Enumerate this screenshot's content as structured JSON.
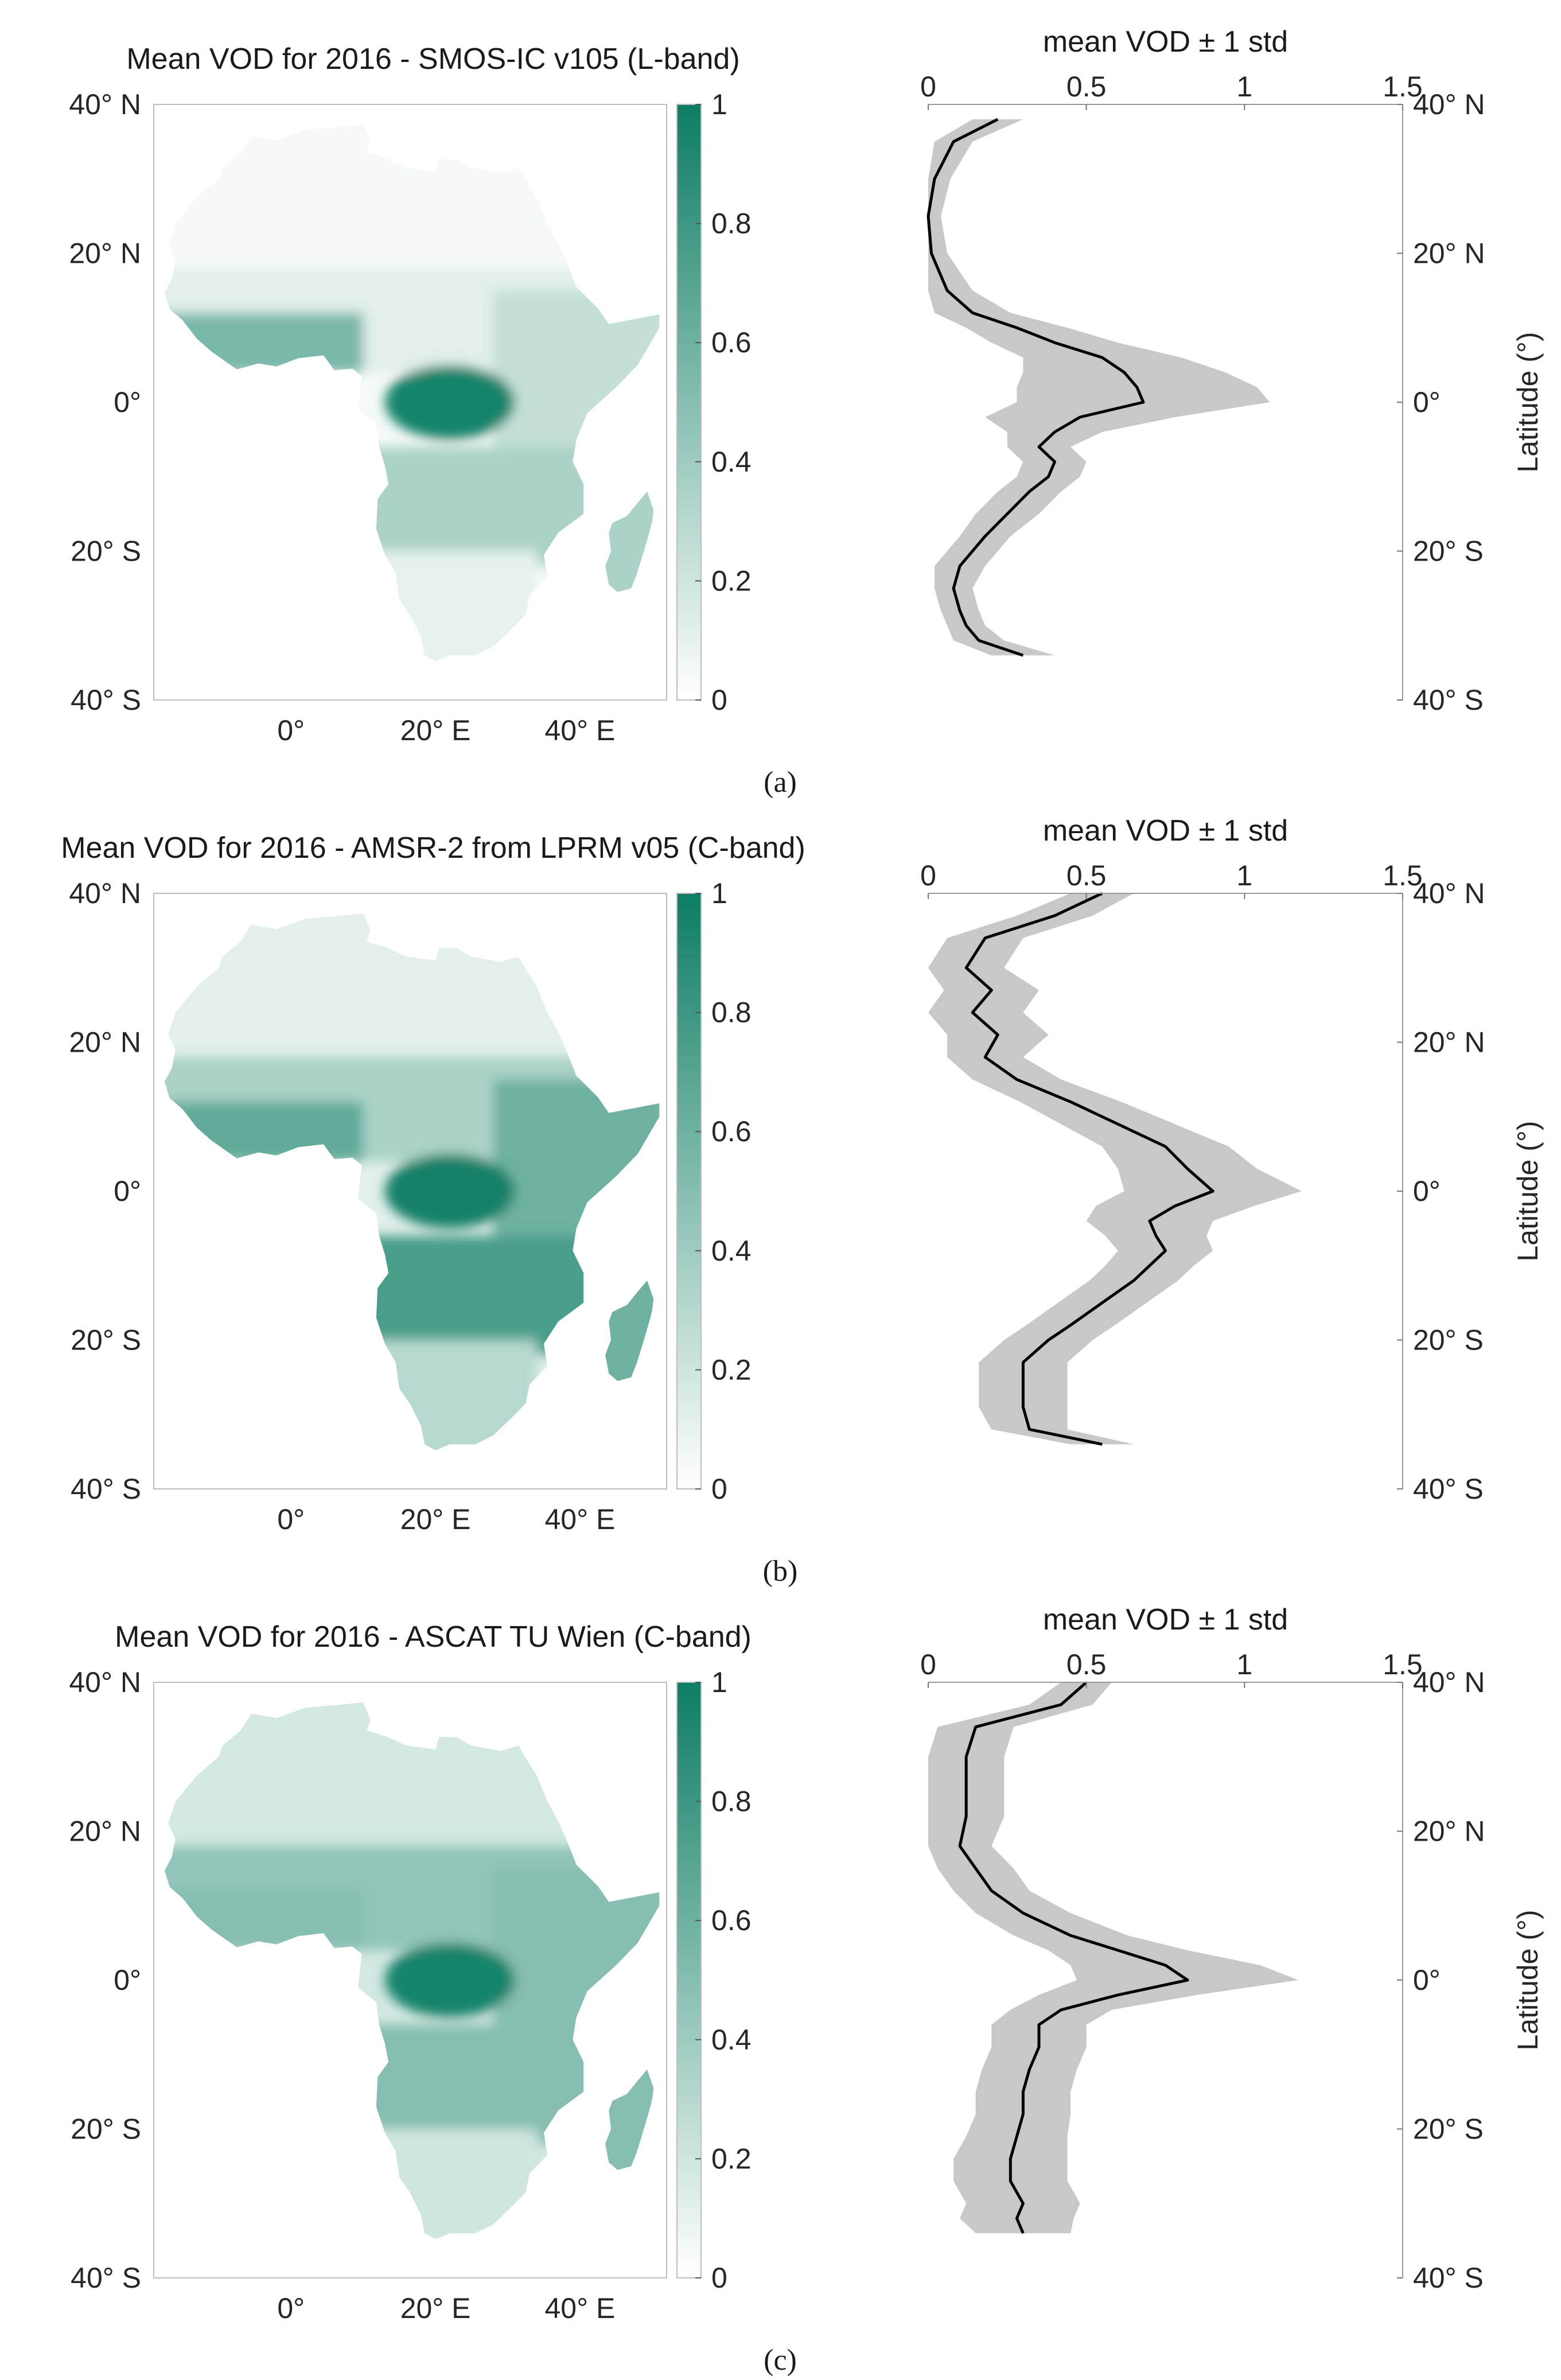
{
  "panels": [
    {
      "id": "a",
      "caption": "(a)",
      "map_title": "Mean VOD for 2016 - SMOS-IC v105 (L-band)",
      "profile_title": "mean VOD ± 1 std",
      "colorbar_ticks": [
        "0",
        "0.2",
        "0.4",
        "0.6",
        "0.8",
        "1"
      ],
      "lat_ticks": [
        "40° N",
        "20° N",
        "0°",
        "20° S",
        "40° S"
      ],
      "lon_ticks": [
        "0°",
        "20° E",
        "40° E"
      ],
      "profile_x_ticks": [
        "0",
        "0.5",
        "1",
        "1.5"
      ],
      "profile_lat_ticks": [
        "40° N",
        "20° N",
        "0°",
        "20° S",
        "40° S"
      ],
      "ylabel": "Latitude (°)",
      "map_intensity": {
        "sahara": 0.04,
        "sahel": 0.12,
        "west_coast": 0.55,
        "congo": 0.95,
        "east_africa": 0.25,
        "southern_savanna": 0.35,
        "southern_dry": 0.1,
        "madagascar": 0.35
      }
    },
    {
      "id": "b",
      "caption": "(b)",
      "map_title": "Mean VOD for 2016 - AMSR-2 from LPRM v05 (C-band)",
      "profile_title": "mean VOD ± 1 std",
      "colorbar_ticks": [
        "0",
        "0.2",
        "0.4",
        "0.6",
        "0.8",
        "1"
      ],
      "lat_ticks": [
        "40° N",
        "20° N",
        "0°",
        "20° S",
        "40° S"
      ],
      "lon_ticks": [
        "0°",
        "20° E",
        "40° E"
      ],
      "profile_x_ticks": [
        "0",
        "0.5",
        "1",
        "1.5"
      ],
      "profile_lat_ticks": [
        "40° N",
        "20° N",
        "0°",
        "20° S",
        "40° S"
      ],
      "ylabel": "Latitude (°)",
      "map_intensity": {
        "sahara": 0.12,
        "sahel": 0.35,
        "west_coast": 0.65,
        "congo": 0.97,
        "east_africa": 0.6,
        "southern_savanna": 0.75,
        "southern_dry": 0.3,
        "madagascar": 0.6
      }
    },
    {
      "id": "c",
      "caption": "(c)",
      "map_title": "Mean VOD for 2016 - ASCAT TU Wien (C-band)",
      "profile_title": "mean VOD ± 1 std",
      "colorbar_ticks": [
        "0",
        "0.2",
        "0.4",
        "0.6",
        "0.8",
        "1"
      ],
      "lat_ticks": [
        "40° N",
        "20° N",
        "0°",
        "20° S",
        "40° S"
      ],
      "lon_ticks": [
        "0°",
        "20° E",
        "40° E"
      ],
      "profile_x_ticks": [
        "0",
        "0.5",
        "1",
        "1.5"
      ],
      "profile_lat_ticks": [
        "40° N",
        "20° N",
        "0°",
        "20° S",
        "40° S"
      ],
      "ylabel": "Latitude (°)",
      "map_intensity": {
        "sahara": 0.18,
        "sahel": 0.45,
        "west_coast": 0.5,
        "congo": 0.95,
        "east_africa": 0.5,
        "southern_savanna": 0.5,
        "southern_dry": 0.2,
        "madagascar": 0.5
      }
    }
  ],
  "colors": {
    "colormap_low": "#ffffff",
    "colormap_high": "#0d7d63",
    "profile_line": "#000000",
    "std_band": "#c8c8c8",
    "axis": "#262626"
  },
  "chart_data": [
    {
      "type": "line",
      "panel": "a",
      "title": "mean VOD ± 1 std",
      "xlabel": "",
      "ylabel": "Latitude (°)",
      "xlim": [
        0,
        1.5
      ],
      "ylim": [
        -40,
        40
      ],
      "orientation": "vertical-profile",
      "lat": [
        38,
        35,
        30,
        25,
        20,
        15,
        12,
        10,
        8,
        6,
        4,
        2,
        0,
        -2,
        -4,
        -6,
        -8,
        -10,
        -12,
        -15,
        -18,
        -20,
        -22,
        -25,
        -28,
        -30,
        -32,
        -34
      ],
      "mean": [
        0.22,
        0.08,
        0.02,
        0.0,
        0.01,
        0.06,
        0.14,
        0.28,
        0.4,
        0.55,
        0.62,
        0.66,
        0.68,
        0.48,
        0.4,
        0.35,
        0.4,
        0.38,
        0.32,
        0.25,
        0.18,
        0.14,
        0.1,
        0.08,
        0.1,
        0.12,
        0.16,
        0.3
      ],
      "std": [
        0.08,
        0.06,
        0.05,
        0.04,
        0.05,
        0.08,
        0.12,
        0.16,
        0.2,
        0.25,
        0.32,
        0.38,
        0.4,
        0.3,
        0.15,
        0.1,
        0.1,
        0.1,
        0.1,
        0.1,
        0.08,
        0.08,
        0.08,
        0.06,
        0.06,
        0.06,
        0.08,
        0.1
      ]
    },
    {
      "type": "line",
      "panel": "b",
      "title": "mean VOD ± 1 std",
      "xlabel": "",
      "ylabel": "Latitude (°)",
      "xlim": [
        0,
        1.5
      ],
      "ylim": [
        -40,
        40
      ],
      "orientation": "vertical-profile",
      "lat": [
        40,
        37,
        34,
        30,
        27,
        24,
        21,
        18,
        15,
        12,
        9,
        6,
        3,
        0,
        -2,
        -4,
        -6,
        -8,
        -10,
        -12,
        -15,
        -18,
        -20,
        -23,
        -26,
        -29,
        -32,
        -34
      ],
      "mean": [
        0.55,
        0.4,
        0.18,
        0.12,
        0.2,
        0.14,
        0.22,
        0.18,
        0.28,
        0.45,
        0.6,
        0.75,
        0.82,
        0.9,
        0.78,
        0.7,
        0.72,
        0.75,
        0.7,
        0.65,
        0.55,
        0.45,
        0.38,
        0.3,
        0.3,
        0.3,
        0.32,
        0.55
      ],
      "std": [
        0.1,
        0.12,
        0.12,
        0.12,
        0.15,
        0.16,
        0.16,
        0.12,
        0.14,
        0.16,
        0.18,
        0.2,
        0.22,
        0.28,
        0.25,
        0.2,
        0.16,
        0.15,
        0.14,
        0.14,
        0.14,
        0.14,
        0.14,
        0.14,
        0.14,
        0.14,
        0.12,
        0.1
      ]
    },
    {
      "type": "line",
      "panel": "c",
      "title": "mean VOD ± 1 std",
      "xlabel": "",
      "ylabel": "Latitude (°)",
      "xlim": [
        0,
        1.5
      ],
      "ylim": [
        -40,
        40
      ],
      "orientation": "vertical-profile",
      "lat": [
        40,
        37,
        34,
        30,
        26,
        22,
        18,
        15,
        12,
        9,
        6,
        4,
        2,
        0,
        -2,
        -4,
        -6,
        -9,
        -12,
        -15,
        -18,
        -21,
        -24,
        -27,
        -30,
        -32,
        -34
      ],
      "mean": [
        0.5,
        0.42,
        0.15,
        0.12,
        0.12,
        0.12,
        0.1,
        0.15,
        0.2,
        0.3,
        0.45,
        0.6,
        0.75,
        0.82,
        0.6,
        0.42,
        0.35,
        0.35,
        0.32,
        0.3,
        0.3,
        0.28,
        0.26,
        0.26,
        0.3,
        0.28,
        0.3
      ],
      "std": [
        0.08,
        0.1,
        0.12,
        0.12,
        0.12,
        0.12,
        0.1,
        0.12,
        0.12,
        0.15,
        0.18,
        0.22,
        0.3,
        0.35,
        0.25,
        0.16,
        0.15,
        0.15,
        0.15,
        0.15,
        0.15,
        0.16,
        0.18,
        0.18,
        0.18,
        0.18,
        0.15
      ]
    }
  ]
}
